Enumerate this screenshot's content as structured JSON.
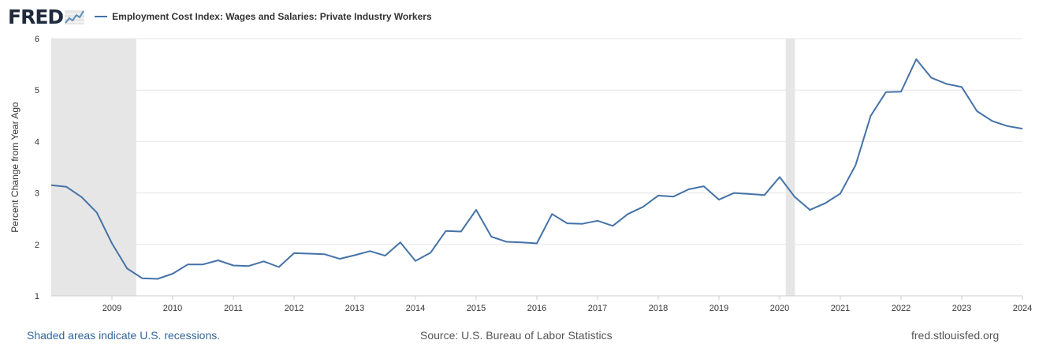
{
  "brand": {
    "logo_text": "FRED"
  },
  "chart_data": {
    "type": "line",
    "title": "Employment Cost Index: Wages and Salaries: Private Industry Workers",
    "xlabel": "",
    "ylabel": "Percent Change from Year Ago",
    "xlim": [
      2008.0,
      2024.0
    ],
    "ylim": [
      1,
      6
    ],
    "yticks": [
      1,
      2,
      3,
      4,
      5,
      6
    ],
    "xticks": [
      2009,
      2010,
      2011,
      2012,
      2013,
      2014,
      2015,
      2016,
      2017,
      2018,
      2019,
      2020,
      2021,
      2022,
      2023,
      2024
    ],
    "recessions": [
      [
        2008.0,
        2009.4
      ],
      [
        2020.1,
        2020.25
      ]
    ],
    "series": [
      {
        "name": "Employment Cost Index: Wages and Salaries: Private Industry Workers",
        "color": "#4572a7",
        "x": [
          2008.0,
          2008.25,
          2008.5,
          2008.75,
          2009.0,
          2009.25,
          2009.5,
          2009.75,
          2010.0,
          2010.25,
          2010.5,
          2010.75,
          2011.0,
          2011.25,
          2011.5,
          2011.75,
          2012.0,
          2012.25,
          2012.5,
          2012.75,
          2013.0,
          2013.25,
          2013.5,
          2013.75,
          2014.0,
          2014.25,
          2014.5,
          2014.75,
          2015.0,
          2015.25,
          2015.5,
          2015.75,
          2016.0,
          2016.25,
          2016.5,
          2016.75,
          2017.0,
          2017.25,
          2017.5,
          2017.75,
          2018.0,
          2018.25,
          2018.5,
          2018.75,
          2019.0,
          2019.25,
          2019.5,
          2019.75,
          2020.0,
          2020.25,
          2020.5,
          2020.75,
          2021.0,
          2021.25,
          2021.5,
          2021.75,
          2022.0,
          2022.25,
          2022.5,
          2022.75,
          2023.0,
          2023.25,
          2023.5,
          2023.75,
          2024.0
        ],
        "values": [
          3.15,
          3.12,
          2.92,
          2.62,
          2.02,
          1.53,
          1.34,
          1.33,
          1.43,
          1.61,
          1.61,
          1.69,
          1.59,
          1.58,
          1.67,
          1.56,
          1.83,
          1.82,
          1.81,
          1.72,
          1.79,
          1.87,
          1.78,
          2.04,
          1.68,
          1.84,
          2.26,
          2.25,
          2.67,
          2.15,
          2.05,
          2.04,
          2.02,
          2.59,
          2.41,
          2.4,
          2.46,
          2.36,
          2.59,
          2.73,
          2.95,
          2.93,
          3.07,
          3.13,
          2.87,
          3.0,
          2.98,
          2.96,
          3.31,
          2.92,
          2.67,
          2.8,
          2.99,
          3.54,
          4.5,
          4.96,
          4.97,
          5.6,
          5.24,
          5.12,
          5.06,
          4.59,
          4.4,
          4.3,
          4.25
        ]
      }
    ]
  },
  "footer": {
    "recession_note": "Shaded areas indicate U.S. recessions.",
    "source": "Source: U.S. Bureau of Labor Statistics",
    "site": "fred.stlouisfed.org"
  }
}
